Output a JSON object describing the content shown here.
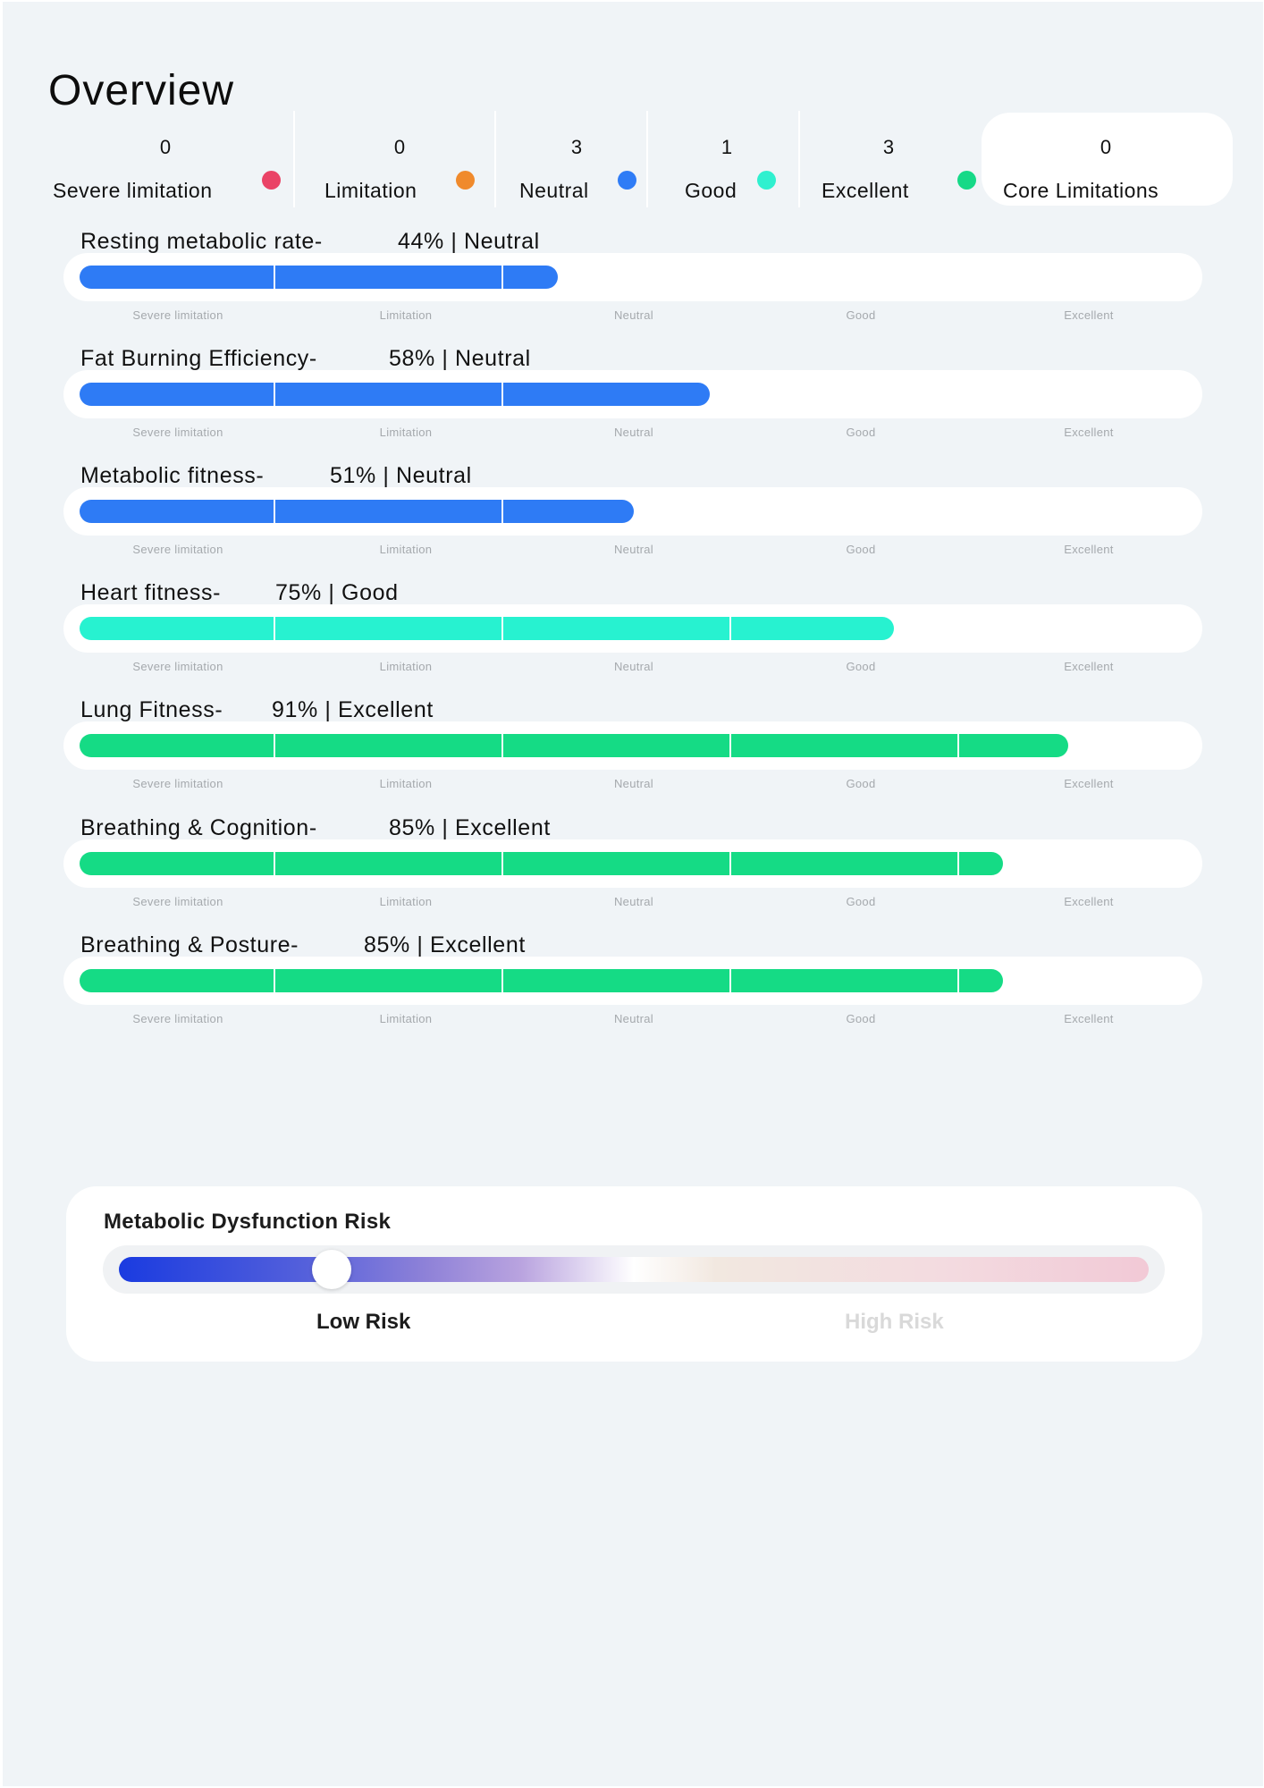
{
  "page": {
    "title": "Overview"
  },
  "summary": [
    {
      "count": "0",
      "label": "Severe limitation",
      "color": "#ea4366"
    },
    {
      "count": "0",
      "label": "Limitation",
      "color": "#f08a2c"
    },
    {
      "count": "3",
      "label": "Neutral",
      "color": "#2f7cf6"
    },
    {
      "count": "1",
      "label": "Good",
      "color": "#2ff0cf"
    },
    {
      "count": "3",
      "label": "Excellent",
      "color": "#16d987"
    },
    {
      "count": "0",
      "label": "Core Limitations"
    }
  ],
  "scale_labels": [
    "Severe limitation",
    "Limitation",
    "Neutral",
    "Good",
    "Excellent"
  ],
  "metrics": [
    {
      "name": "Resting metabolic rate-",
      "value": "44% | Neutral",
      "fraction": 0.44,
      "color": "#2e7bf5"
    },
    {
      "name": "Fat Burning Efficiency-",
      "value": "58% | Neutral",
      "fraction": 0.58,
      "color": "#2e7bf5"
    },
    {
      "name": "Metabolic fitness-",
      "value": "51% | Neutral",
      "fraction": 0.51,
      "color": "#2e7bf5"
    },
    {
      "name": "Heart fitness-",
      "value": "75% | Good",
      "fraction": 0.75,
      "color": "#27f2d0"
    },
    {
      "name": "Lung Fitness-",
      "value": "91% | Excellent",
      "fraction": 0.91,
      "color": "#15db85"
    },
    {
      "name": "Breathing & Cognition-",
      "value": "85% | Excellent",
      "fraction": 0.85,
      "color": "#15db85"
    },
    {
      "name": "Breathing & Posture-",
      "value": "85% | Excellent",
      "fraction": 0.85,
      "color": "#15db85"
    }
  ],
  "risk": {
    "title": "Metabolic Dysfunction Risk",
    "low_label": "Low Risk",
    "high_label": "High Risk",
    "level": 0.25
  }
}
